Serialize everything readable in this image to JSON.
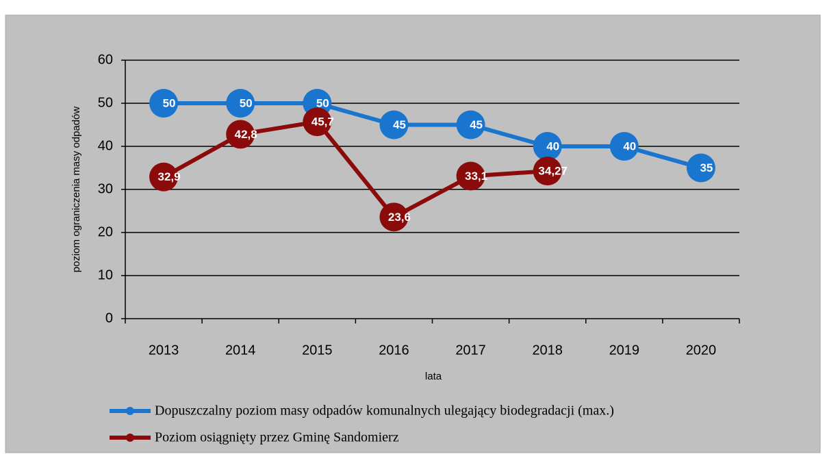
{
  "chart_data": {
    "type": "line",
    "x_label": "lata",
    "y_label": "poziom ograniczenia masy odpadów",
    "categories": [
      "2013",
      "2014",
      "2015",
      "2016",
      "2017",
      "2018",
      "2019",
      "2020"
    ],
    "series": [
      {
        "name": "Dopuszczalny poziom masy odpadów komunalnych ulegający biodegradacji (max.)",
        "color": "#1a75cf",
        "values": [
          50,
          50,
          50,
          45,
          45,
          40,
          40,
          35
        ]
      },
      {
        "name": "Poziom osiągnięty przez Gminę Sandomierz",
        "color": "#8b0a0a",
        "values": [
          32.9,
          42.8,
          45.7,
          23.6,
          33.1,
          34.27,
          null,
          null
        ],
        "value_labels": [
          "32,9",
          "42,8",
          "45,7",
          "23,6",
          "33,1",
          "34,27",
          null,
          null
        ]
      }
    ],
    "ylim": [
      0,
      60
    ],
    "yticks": [
      0,
      10,
      20,
      30,
      40,
      50,
      60
    ],
    "grid": true,
    "legend": "bottom"
  }
}
